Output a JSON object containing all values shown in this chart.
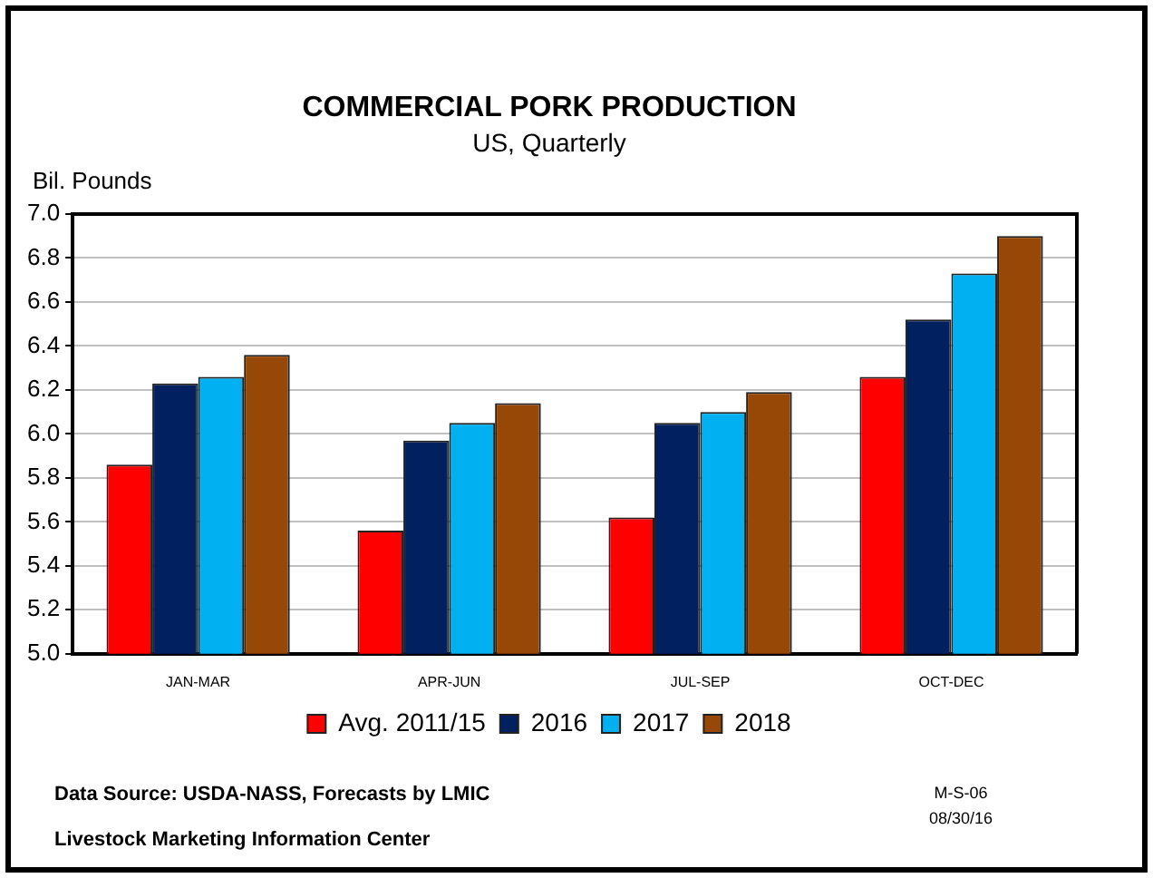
{
  "chart_data": {
    "type": "bar",
    "title": "COMMERCIAL PORK PRODUCTION",
    "subtitle": "US, Quarterly",
    "ylabel": "Bil. Pounds",
    "categories": [
      "JAN-MAR",
      "APR-JUN",
      "JUL-SEP",
      "OCT-DEC"
    ],
    "series": [
      {
        "name": "Avg. 2011/15",
        "color": "#ff0000",
        "values": [
          5.86,
          5.56,
          5.62,
          6.26
        ]
      },
      {
        "name": "2016",
        "color": "#002060",
        "values": [
          6.23,
          5.97,
          6.05,
          6.52
        ]
      },
      {
        "name": "2017",
        "color": "#00b0f0",
        "values": [
          6.26,
          6.05,
          6.1,
          6.73
        ]
      },
      {
        "name": "2018",
        "color": "#974706",
        "values": [
          6.36,
          6.14,
          6.19,
          6.9
        ]
      }
    ],
    "ylim": [
      5.0,
      7.0
    ],
    "yticks": [
      {
        "value": 5,
        "label": "5.0"
      },
      {
        "value": 5.2,
        "label": "5.2"
      },
      {
        "value": 5.4,
        "label": "5.4"
      },
      {
        "value": 5.6,
        "label": "5.6"
      },
      {
        "value": 5.8,
        "label": "5.8"
      },
      {
        "value": 6,
        "label": "6.0"
      },
      {
        "value": 6.2,
        "label": "6.2"
      },
      {
        "value": 6.4,
        "label": "6.4"
      },
      {
        "value": 6.6,
        "label": "6.6"
      },
      {
        "value": 6.8,
        "label": "6.8"
      },
      {
        "value": 7,
        "label": "7.0"
      }
    ],
    "grid": "y",
    "legend": "bottom",
    "annotations": [
      "Data Source:  USDA-NASS, Forecasts by LMIC",
      "Livestock Marketing Information Center",
      "M-S-06",
      "08/30/16"
    ]
  }
}
